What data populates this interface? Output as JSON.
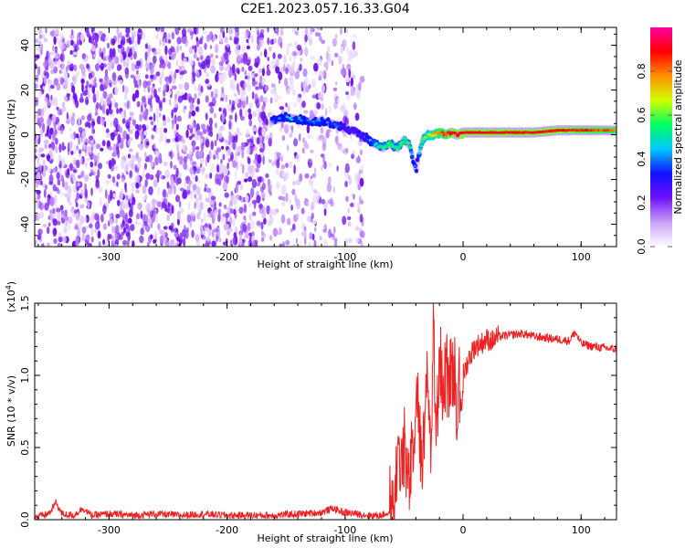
{
  "figure": {
    "title": "C2E1.2023.057.16.33.G04"
  },
  "chart_data": [
    {
      "type": "heatmap",
      "title": "C2E1.2023.057.16.33.G04",
      "xlabel": "Height of straight line (km)",
      "ylabel": "Frequency (Hz)",
      "xlim": [
        -363,
        130
      ],
      "ylim": [
        -50,
        48
      ],
      "x_ticks": [
        -300,
        -200,
        -100,
        0,
        100
      ],
      "x_tick_labels": [
        "-300",
        "-200",
        "-100",
        "0",
        "100"
      ],
      "y_ticks": [
        -40,
        -20,
        0,
        20,
        40
      ],
      "y_tick_labels": [
        "-40",
        "-20",
        "0",
        "20",
        "40"
      ],
      "colorbar": {
        "label": "Normalized spectral amplitude",
        "range": [
          0,
          1
        ],
        "ticks": [
          0.0,
          0.2,
          0.4,
          0.6,
          0.8
        ],
        "tick_labels": [
          "0.0",
          "0.2",
          "0.4",
          "0.6",
          "0.8"
        ],
        "colormap": [
          "#ffffff",
          "#c8a0f8",
          "#7010ff",
          "#1010ff",
          "#00c8ff",
          "#00ff60",
          "#d0ff00",
          "#ff9000",
          "#ff0000",
          "#ff00a0"
        ]
      },
      "regions": [
        {
          "x": [
            -363,
            -165
          ],
          "description": "dense noise"
        },
        {
          "x": [
            -165,
            -85
          ],
          "description": "sparse noise"
        },
        {
          "x": [
            -85,
            130
          ],
          "description": "clean"
        }
      ],
      "signal_track": {
        "x": [
          -162,
          -150,
          -140,
          -130,
          -120,
          -110,
          -100,
          -90,
          -83,
          -75,
          -68,
          -62,
          -55,
          -50,
          -45,
          -40,
          -35,
          -30,
          -25,
          -20,
          -15,
          -10,
          -5,
          0,
          20,
          40,
          60,
          80,
          100,
          130
        ],
        "freq": [
          6,
          8,
          7,
          6,
          6,
          5,
          3,
          1,
          -1,
          -4,
          -6,
          -4,
          -6,
          -2,
          -5,
          -16,
          -3,
          0,
          0,
          1,
          0,
          1,
          0,
          1,
          1,
          1,
          1,
          2,
          2,
          2
        ],
        "amplitude": [
          0.35,
          0.4,
          0.4,
          0.38,
          0.4,
          0.35,
          0.3,
          0.25,
          0.3,
          0.45,
          0.5,
          0.5,
          0.5,
          0.55,
          0.5,
          0.3,
          0.55,
          0.6,
          0.7,
          0.8,
          0.8,
          0.9,
          0.9,
          0.9,
          0.9,
          0.9,
          0.9,
          0.9,
          0.85,
          0.8
        ]
      }
    },
    {
      "type": "line",
      "xlabel": "Height of straight line (km)",
      "ylabel": "SNR (10 * v/v)",
      "y_multiplier_label": "(x10",
      "y_multiplier_exp": "4",
      "y_multiplier_close": ")",
      "xlim": [
        -363,
        130
      ],
      "ylim": [
        0,
        1.5
      ],
      "x_ticks": [
        -300,
        -200,
        -100,
        0,
        100
      ],
      "x_tick_labels": [
        "-300",
        "-200",
        "-100",
        "0",
        "100"
      ],
      "y_ticks": [
        0,
        0.5,
        1.0,
        1.5
      ],
      "y_tick_labels": [
        "0.0",
        "0.5",
        "1.0",
        "1.5"
      ],
      "color": "#ee2020",
      "series": [
        {
          "x": [
            -363,
            -355,
            -350,
            -345,
            -340,
            -330,
            -322,
            -315,
            -300,
            -280,
            -260,
            -240,
            -220,
            -200,
            -180,
            -160,
            -140,
            -120,
            -110,
            -105,
            -100,
            -90,
            -80,
            -70,
            -62,
            -58,
            -55,
            -50,
            -46,
            -42,
            -38,
            -35,
            -30,
            -27,
            -25,
            -23,
            -20,
            -17,
            -14,
            -11,
            -8,
            -5,
            -2,
            0,
            5,
            10,
            15,
            20,
            25,
            30,
            40,
            50,
            60,
            70,
            80,
            90,
            95,
            100,
            110,
            120,
            130
          ],
          "y": [
            0.02,
            0.03,
            0.05,
            0.12,
            0.04,
            0.03,
            0.08,
            0.03,
            0.04,
            0.03,
            0.04,
            0.03,
            0.04,
            0.03,
            0.03,
            0.03,
            0.04,
            0.05,
            0.08,
            0.06,
            0.05,
            0.04,
            0.03,
            0.03,
            0.05,
            0.15,
            0.35,
            0.5,
            0.2,
            0.55,
            0.8,
            0.3,
            0.95,
            0.45,
            1.5,
            0.4,
            1.2,
            0.85,
            0.95,
            1.0,
            1.05,
            0.8,
            0.9,
            1.0,
            1.12,
            1.2,
            1.22,
            1.25,
            1.24,
            1.27,
            1.28,
            1.29,
            1.27,
            1.26,
            1.25,
            1.24,
            1.3,
            1.22,
            1.2,
            1.19,
            1.18
          ]
        }
      ]
    }
  ]
}
